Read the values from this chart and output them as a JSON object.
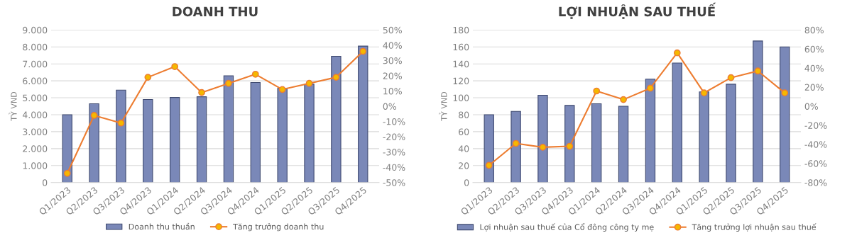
{
  "chart_data": [
    {
      "type": "bar",
      "title": "DOANH THU",
      "ylabel": "TỶ VND",
      "categories": [
        "Q1/2023",
        "Q2/2023",
        "Q3/2023",
        "Q4/2023",
        "Q1/2024",
        "Q2/2024",
        "Q3/2024",
        "Q4/2024",
        "Q1/2025",
        "Q2/2025",
        "Q3/2025",
        "Q4/2025"
      ],
      "series": [
        {
          "name": "Doanh thu thuần",
          "color": "#7a88b8",
          "values": [
            4000,
            4650,
            5450,
            4900,
            5020,
            5060,
            6300,
            5900,
            5550,
            5800,
            7450,
            8050
          ]
        },
        {
          "name": "Tăng trưởng doanh thu",
          "type": "line",
          "axis": "y2",
          "color": "#ed7d31",
          "values": [
            -44,
            -6,
            -11,
            19,
            26,
            9,
            15,
            21,
            11,
            15,
            19,
            36
          ]
        }
      ],
      "ylim": [
        0,
        9000
      ],
      "yticks": [
        {
          "value": 0,
          "label": "0"
        },
        {
          "value": 1000,
          "label": "1.000"
        },
        {
          "value": 2000,
          "label": "2.000"
        },
        {
          "value": 3000,
          "label": "3.000"
        },
        {
          "value": 4000,
          "label": "4.000"
        },
        {
          "value": 5000,
          "label": "5.000"
        },
        {
          "value": 6000,
          "label": "6.000"
        },
        {
          "value": 7000,
          "label": "7.000"
        },
        {
          "value": 8000,
          "label": "8.000"
        },
        {
          "value": 9000,
          "label": "9.000"
        }
      ],
      "y2lim": [
        -50,
        50
      ],
      "y2ticks": [
        {
          "value": -50,
          "label": "-50%"
        },
        {
          "value": -40,
          "label": "-40%"
        },
        {
          "value": -30,
          "label": "-30%"
        },
        {
          "value": -20,
          "label": "-20%"
        },
        {
          "value": -10,
          "label": "-10%"
        },
        {
          "value": 0,
          "label": "0%"
        },
        {
          "value": 10,
          "label": "10%"
        },
        {
          "value": 20,
          "label": "20%"
        },
        {
          "value": 30,
          "label": "30%"
        },
        {
          "value": 40,
          "label": "40%"
        },
        {
          "value": 50,
          "label": "50%"
        }
      ],
      "grid": "y",
      "legend": "bottom",
      "marker": "circle"
    },
    {
      "type": "bar",
      "title": "LỢI NHUẬN SAU THUẾ",
      "ylabel": "TỶ VND",
      "categories": [
        "Q1/2023",
        "Q2/2023",
        "Q3/2023",
        "Q4/2023",
        "Q1/2024",
        "Q2/2024",
        "Q3/2024",
        "Q4/2024",
        "Q1/2025",
        "Q2/2025",
        "Q3/2025",
        "Q4/2025"
      ],
      "series": [
        {
          "name": "Lợi nhuận sau thuế của Cổ đông công ty mẹ",
          "color": "#7a88b8",
          "values": [
            80,
            84,
            103,
            91,
            93,
            90,
            122,
            141,
            107,
            116,
            167,
            160
          ]
        },
        {
          "name": "Tăng trưởng lợi nhuận sau thuế",
          "type": "line",
          "axis": "y2",
          "color": "#ed7d31",
          "values": [
            -62,
            -39,
            -43,
            -42,
            16,
            7,
            19,
            56,
            14,
            30,
            37,
            14
          ]
        }
      ],
      "ylim": [
        0,
        180
      ],
      "yticks": [
        0,
        20,
        40,
        60,
        80,
        100,
        120,
        140,
        160,
        180
      ],
      "y2lim": [
        -80,
        80
      ],
      "y2ticks": [
        {
          "value": -80,
          "label": "-80%"
        },
        {
          "value": -60,
          "label": "-60%"
        },
        {
          "value": -40,
          "label": "-40%"
        },
        {
          "value": -20,
          "label": "-20%"
        },
        {
          "value": 0,
          "label": "0%"
        },
        {
          "value": 20,
          "label": "20%"
        },
        {
          "value": 40,
          "label": "40%"
        },
        {
          "value": 60,
          "label": "60%"
        },
        {
          "value": 80,
          "label": "80%"
        }
      ],
      "grid": "y",
      "legend": "bottom",
      "marker": "circle"
    }
  ]
}
